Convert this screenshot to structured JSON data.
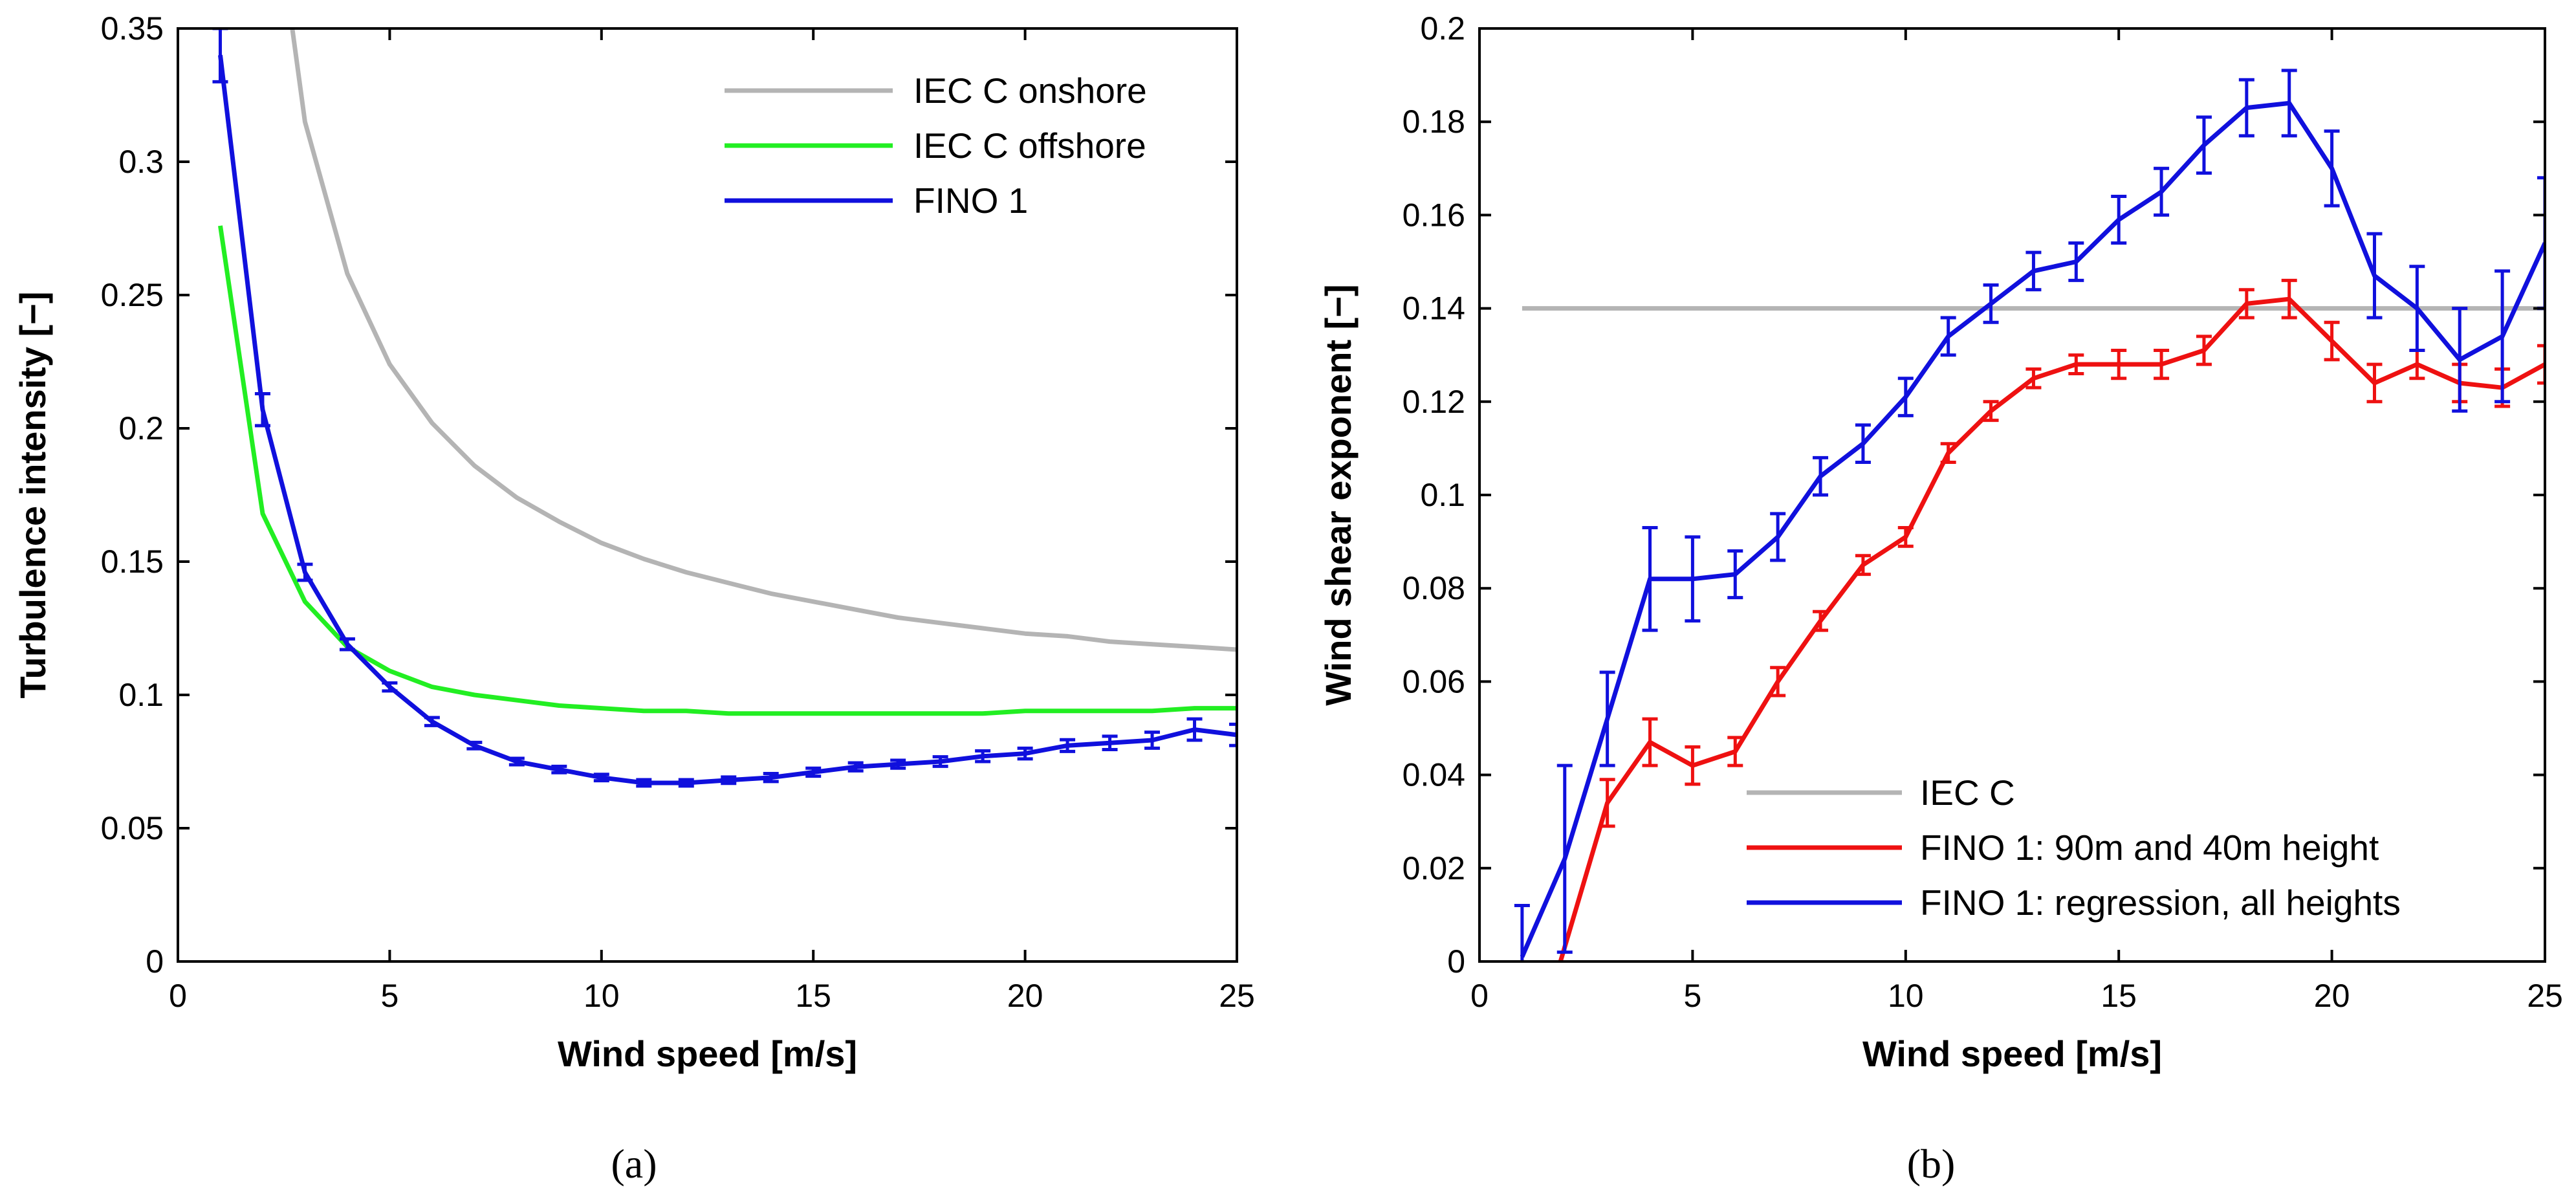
{
  "chart_data": [
    {
      "type": "line",
      "caption": "(a)",
      "xlabel": "Wind speed [m/s]",
      "ylabel": "Turbulence intensity [−]",
      "xlim": [
        0,
        25
      ],
      "ylim": [
        0,
        0.35
      ],
      "xticks": [
        0,
        5,
        10,
        15,
        20,
        25
      ],
      "xtick_labels": [
        "0",
        "5",
        "10",
        "15",
        "20",
        "25"
      ],
      "yticks": [
        0,
        0.05,
        0.1,
        0.15,
        0.2,
        0.25,
        0.3,
        0.35
      ],
      "ytick_labels": [
        "0",
        "0.05",
        "0.1",
        "0.15",
        "0.2",
        "0.25",
        "0.3",
        "0.35"
      ],
      "legend_position": "top-right",
      "series": [
        {
          "name": "IEC C onshore",
          "color": "#b4b4b4",
          "x": [
            2.7,
            3,
            4,
            5,
            6,
            7,
            8,
            9,
            10,
            11,
            12,
            13,
            14,
            15,
            16,
            17,
            18,
            19,
            20,
            21,
            22,
            23,
            24,
            25
          ],
          "y": [
            0.35,
            0.315,
            0.258,
            0.224,
            0.202,
            0.186,
            0.174,
            0.165,
            0.157,
            0.151,
            0.146,
            0.142,
            0.138,
            0.135,
            0.132,
            0.129,
            0.127,
            0.125,
            0.123,
            0.122,
            0.12,
            0.119,
            0.118,
            0.117
          ]
        },
        {
          "name": "IEC C offshore",
          "color": "#22ee22",
          "x": [
            1,
            2,
            3,
            4,
            5,
            6,
            7,
            8,
            9,
            10,
            11,
            12,
            13,
            14,
            15,
            16,
            17,
            18,
            19,
            20,
            21,
            22,
            23,
            24,
            25
          ],
          "y": [
            0.276,
            0.168,
            0.135,
            0.118,
            0.109,
            0.103,
            0.1,
            0.098,
            0.096,
            0.095,
            0.094,
            0.094,
            0.093,
            0.093,
            0.093,
            0.093,
            0.093,
            0.093,
            0.093,
            0.094,
            0.094,
            0.094,
            0.094,
            0.095,
            0.095
          ]
        },
        {
          "name": "FINO 1",
          "color": "#1010dd",
          "x": [
            1,
            2,
            3,
            4,
            5,
            6,
            7,
            8,
            9,
            10,
            11,
            12,
            13,
            14,
            15,
            16,
            17,
            18,
            19,
            20,
            21,
            22,
            23,
            24,
            25
          ],
          "y": [
            0.34,
            0.207,
            0.146,
            0.119,
            0.103,
            0.09,
            0.081,
            0.075,
            0.072,
            0.069,
            0.067,
            0.067,
            0.068,
            0.069,
            0.071,
            0.073,
            0.074,
            0.075,
            0.077,
            0.078,
            0.081,
            0.082,
            0.083,
            0.087,
            0.085
          ],
          "err": [
            0.01,
            0.006,
            0.003,
            0.002,
            0.0015,
            0.0015,
            0.0012,
            0.0012,
            0.0012,
            0.0012,
            0.0012,
            0.0012,
            0.0012,
            0.0015,
            0.0015,
            0.0015,
            0.0015,
            0.0018,
            0.002,
            0.002,
            0.0022,
            0.0025,
            0.003,
            0.004,
            0.004
          ]
        }
      ]
    },
    {
      "type": "line",
      "caption": "(b)",
      "xlabel": "Wind speed [m/s]",
      "ylabel": "Wind shear exponent [−]",
      "xlim": [
        0,
        25
      ],
      "ylim": [
        0,
        0.2
      ],
      "xticks": [
        0,
        5,
        10,
        15,
        20,
        25
      ],
      "xtick_labels": [
        "0",
        "5",
        "10",
        "15",
        "20",
        "25"
      ],
      "yticks": [
        0,
        0.02,
        0.04,
        0.06,
        0.08,
        0.1,
        0.12,
        0.14,
        0.16,
        0.18,
        0.2
      ],
      "ytick_labels": [
        "0",
        "0.02",
        "0.04",
        "0.06",
        "0.08",
        "0.1",
        "0.12",
        "0.14",
        "0.16",
        "0.18",
        "0.2"
      ],
      "legend_position": "bottom-right",
      "series": [
        {
          "name": "IEC C",
          "color": "#b4b4b4",
          "x": [
            1,
            25
          ],
          "y": [
            0.14,
            0.14
          ]
        },
        {
          "name": "FINO 1: 90m and 40m height",
          "color": "#ee1111",
          "x": [
            1.9,
            3,
            4,
            5,
            6,
            7,
            8,
            9,
            10,
            11,
            12,
            13,
            14,
            15,
            16,
            17,
            18,
            19,
            20,
            21,
            22,
            23,
            24,
            25
          ],
          "y": [
            0.0,
            0.034,
            0.047,
            0.042,
            0.045,
            0.06,
            0.073,
            0.085,
            0.091,
            0.109,
            0.118,
            0.125,
            0.128,
            0.128,
            0.128,
            0.131,
            0.141,
            0.142,
            0.133,
            0.124,
            0.128,
            0.124,
            0.123,
            0.128
          ],
          "err": [
            0.0,
            0.005,
            0.005,
            0.004,
            0.003,
            0.003,
            0.002,
            0.002,
            0.002,
            0.002,
            0.002,
            0.002,
            0.002,
            0.003,
            0.003,
            0.003,
            0.003,
            0.004,
            0.004,
            0.004,
            0.003,
            0.004,
            0.004,
            0.004
          ]
        },
        {
          "name": "FINO 1: regression, all heights",
          "color": "#1010dd",
          "x": [
            1,
            2,
            3,
            4,
            5,
            6,
            7,
            8,
            9,
            10,
            11,
            12,
            13,
            14,
            15,
            16,
            17,
            18,
            19,
            20,
            21,
            22,
            23,
            24,
            25
          ],
          "y": [
            0.001,
            0.022,
            0.052,
            0.082,
            0.082,
            0.083,
            0.091,
            0.104,
            0.111,
            0.121,
            0.134,
            0.141,
            0.148,
            0.15,
            0.159,
            0.165,
            0.175,
            0.183,
            0.184,
            0.17,
            0.147,
            0.14,
            0.129,
            0.134,
            0.154
          ],
          "err": [
            0.011,
            0.02,
            0.01,
            0.011,
            0.009,
            0.005,
            0.005,
            0.004,
            0.004,
            0.004,
            0.004,
            0.004,
            0.004,
            0.004,
            0.005,
            0.005,
            0.006,
            0.006,
            0.007,
            0.008,
            0.009,
            0.009,
            0.011,
            0.014,
            0.014
          ]
        }
      ]
    }
  ]
}
